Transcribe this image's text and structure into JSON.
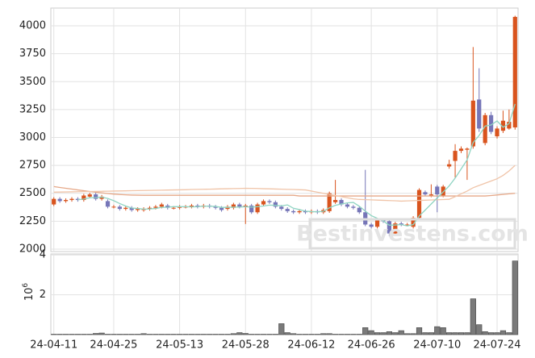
{
  "chart_data": {
    "type": "candlestick",
    "categories": [
      "24-04-11",
      null,
      null,
      null,
      null,
      null,
      null,
      null,
      null,
      null,
      "24-04-25",
      null,
      null,
      null,
      null,
      null,
      null,
      null,
      null,
      null,
      null,
      "24-05-13",
      null,
      null,
      null,
      null,
      null,
      null,
      null,
      null,
      null,
      null,
      "24-05-28",
      null,
      null,
      null,
      null,
      null,
      null,
      null,
      null,
      null,
      null,
      "24-06-12",
      null,
      null,
      null,
      null,
      null,
      null,
      null,
      null,
      null,
      "24-06-26",
      null,
      null,
      null,
      null,
      null,
      null,
      null,
      null,
      null,
      null,
      "24-07-10",
      null,
      null,
      null,
      null,
      null,
      null,
      null,
      null,
      null,
      "24-07-24",
      null,
      null,
      null
    ],
    "open": [
      2400,
      2450,
      2430,
      2440,
      2450,
      2440,
      2470,
      2490,
      2450,
      2430,
      2380,
      2380,
      2360,
      2370,
      2350,
      2350,
      2360,
      2370,
      2380,
      2390,
      2370,
      2370,
      2380,
      2380,
      2390,
      2380,
      2390,
      2380,
      2370,
      2360,
      2370,
      2400,
      2380,
      2390,
      2330,
      2400,
      2430,
      2420,
      2380,
      2360,
      2340,
      2330,
      2340,
      2330,
      2340,
      2330,
      2340,
      2420,
      2440,
      2400,
      2380,
      2370,
      2330,
      2220,
      2200,
      2260,
      2250,
      2140,
      2230,
      2220,
      2200,
      2280,
      2510,
      2480,
      2560,
      2480,
      2740,
      2790,
      2880,
      2890,
      2920,
      3340,
      2950,
      3200,
      3010,
      3060,
      3080,
      3090
    ],
    "high": [
      2465,
      2465,
      2455,
      2465,
      2465,
      2495,
      2505,
      2505,
      2485,
      2445,
      2395,
      2395,
      2385,
      2385,
      2375,
      2375,
      2385,
      2395,
      2415,
      2405,
      2385,
      2395,
      2395,
      2405,
      2405,
      2405,
      2405,
      2395,
      2385,
      2395,
      2415,
      2415,
      2405,
      2405,
      2415,
      2445,
      2445,
      2435,
      2395,
      2375,
      2355,
      2355,
      2355,
      2355,
      2355,
      2365,
      2515,
      2620,
      2455,
      2415,
      2395,
      2385,
      2710,
      2235,
      2275,
      2275,
      2265,
      2245,
      2245,
      2235,
      2295,
      2545,
      2525,
      2580,
      2575,
      2575,
      2800,
      2940,
      2920,
      2910,
      3810,
      3620,
      3220,
      3230,
      3100,
      3240,
      3250,
      4090
    ],
    "low": [
      2385,
      2415,
      2415,
      2425,
      2425,
      2425,
      2455,
      2435,
      2435,
      2365,
      2365,
      2345,
      2345,
      2335,
      2335,
      2335,
      2345,
      2355,
      2365,
      2355,
      2355,
      2355,
      2365,
      2365,
      2365,
      2365,
      2365,
      2355,
      2335,
      2345,
      2355,
      2365,
      2225,
      2315,
      2315,
      2385,
      2405,
      2365,
      2345,
      2325,
      2315,
      2315,
      2315,
      2315,
      2315,
      2315,
      2325,
      2405,
      2385,
      2365,
      2355,
      2315,
      2205,
      2185,
      2185,
      2235,
      2115,
      2125,
      2205,
      2205,
      2185,
      2265,
      2475,
      2465,
      2330,
      2465,
      2720,
      2640,
      2860,
      2620,
      2900,
      3050,
      2930,
      3030,
      2990,
      3040,
      3070,
      3070
    ],
    "close": [
      2450,
      2430,
      2440,
      2450,
      2440,
      2480,
      2490,
      2450,
      2470,
      2380,
      2380,
      2360,
      2370,
      2350,
      2360,
      2360,
      2370,
      2380,
      2400,
      2370,
      2370,
      2380,
      2380,
      2390,
      2380,
      2390,
      2380,
      2370,
      2350,
      2380,
      2400,
      2380,
      2390,
      2330,
      2400,
      2430,
      2420,
      2380,
      2360,
      2340,
      2330,
      2340,
      2330,
      2340,
      2330,
      2350,
      2500,
      2440,
      2400,
      2380,
      2370,
      2330,
      2220,
      2200,
      2260,
      2250,
      2140,
      2230,
      2220,
      2220,
      2280,
      2530,
      2490,
      2490,
      2490,
      2560,
      2760,
      2880,
      2900,
      2900,
      3330,
      3080,
      3200,
      3050,
      3080,
      3150,
      3140,
      4080
    ],
    "up_color": "#d9541e",
    "down_color": "#7676b8",
    "lines": [
      {
        "color": "#e6a888",
        "values": [
          2560,
          2552,
          2545,
          2538,
          2530,
          2523,
          2516,
          2510,
          2504,
          2498,
          2493,
          2489,
          2486,
          2484,
          2483,
          2482,
          2482,
          2482,
          2482,
          2482,
          2482,
          2482,
          2482,
          2482,
          2482,
          2482,
          2482,
          2482,
          2482,
          2482,
          2482,
          2482,
          2482,
          2482,
          2482,
          2482,
          2482,
          2482,
          2482,
          2482,
          2482,
          2476,
          2476,
          2476,
          2476,
          2476,
          2476,
          2476,
          2476,
          2476,
          2476,
          2476,
          2476,
          2476,
          2476,
          2476,
          2476,
          2476,
          2476,
          2476,
          2476,
          2476,
          2476,
          2476,
          2476,
          2476,
          2476,
          2476,
          2476,
          2476,
          2476,
          2476,
          2476,
          2480,
          2485,
          2490,
          2495,
          2500
        ]
      },
      {
        "color": "#f0c4a8",
        "values": [
          2510,
          2511,
          2512,
          2513,
          2514,
          2515,
          2516,
          2517,
          2518,
          2519,
          2520,
          2521,
          2522,
          2523,
          2524,
          2525,
          2526,
          2527,
          2528,
          2529,
          2530,
          2531,
          2532,
          2534,
          2535,
          2536,
          2537,
          2538,
          2540,
          2541,
          2542,
          2543,
          2545,
          2544,
          2543,
          2541,
          2540,
          2538,
          2537,
          2535,
          2534,
          2532,
          2530,
          2520,
          2510,
          2500,
          2490,
          2480,
          2470,
          2460,
          2450,
          2445,
          2443,
          2441,
          2439,
          2437,
          2435,
          2433,
          2430,
          2432,
          2434,
          2436,
          2438,
          2440,
          2442,
          2444,
          2446,
          2470,
          2495,
          2520,
          2550,
          2570,
          2590,
          2610,
          2630,
          2660,
          2700,
          2750
        ]
      },
      {
        "color": "#8fd4c2",
        "values": [
          null,
          null,
          null,
          null,
          2442,
          2448,
          2460,
          2462,
          2466,
          2454,
          2434,
          2408,
          2386,
          2368,
          2364,
          2358,
          2360,
          2364,
          2374,
          2376,
          2380,
          2380,
          2380,
          2378,
          2380,
          2384,
          2384,
          2382,
          2374,
          2374,
          2376,
          2376,
          2380,
          2376,
          2380,
          2386,
          2394,
          2392,
          2388,
          2396,
          2366,
          2354,
          2340,
          2336,
          2334,
          2338,
          2370,
          2392,
          2404,
          2414,
          2418,
          2384,
          2340,
          2300,
          2276,
          2252,
          2214,
          2216,
          2220,
          2208,
          2220,
          2296,
          2350,
          2404,
          2458,
          2512,
          2566,
          2636,
          2718,
          2800,
          2954,
          3018,
          3102,
          3112,
          3148,
          3092,
          3124,
          3300
        ]
      }
    ],
    "ylim": [
      1978,
      4159
    ],
    "yticks": [
      2000,
      2250,
      2500,
      2750,
      3000,
      3250,
      3500,
      3750,
      4000
    ],
    "volume": [
      0.02,
      0.02,
      0.02,
      0.02,
      0.02,
      0.02,
      0.02,
      0.06,
      0.08,
      0.02,
      0.02,
      0.02,
      0.02,
      0.02,
      0.02,
      0.05,
      0.02,
      0.02,
      0.02,
      0.02,
      0.02,
      0.02,
      0.02,
      0.02,
      0.02,
      0.02,
      0.02,
      0.02,
      0.02,
      0.02,
      0.05,
      0.1,
      0.06,
      0.02,
      0.02,
      0.02,
      0.02,
      0.02,
      0.55,
      0.1,
      0.05,
      0.02,
      0.02,
      0.02,
      0.02,
      0.05,
      0.05,
      0.02,
      0.02,
      0.02,
      0.02,
      0.02,
      0.35,
      0.2,
      0.1,
      0.1,
      0.15,
      0.1,
      0.2,
      0.05,
      0.05,
      0.35,
      0.1,
      0.1,
      0.4,
      0.35,
      0.1,
      0.1,
      0.1,
      0.1,
      1.8,
      0.5,
      0.15,
      0.1,
      0.1,
      0.2,
      0.1,
      3.7
    ],
    "volume_color": "#7a7a7a",
    "volume_ylim": [
      0,
      4.05
    ],
    "volume_yticks": [
      2,
      4
    ],
    "volume_unit_label": {
      "base": "10",
      "exponent": "6"
    },
    "watermark": "Bestinvestens.com",
    "grid": true
  }
}
